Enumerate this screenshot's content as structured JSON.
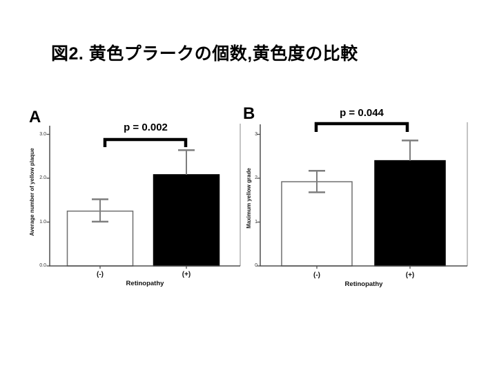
{
  "slide": {
    "title": "図2. 黄色プラークの個数,黄色度の比較"
  },
  "chart_data": [
    {
      "type": "bar",
      "panel_label": "A",
      "ylabel": "Average number of yellow plaque",
      "xlabel": "Retinopathy",
      "categories": [
        "(-)",
        "(+)"
      ],
      "bars": [
        {
          "category": "(-)",
          "value": 1.25,
          "error_low": 1.01,
          "error_high": 1.52,
          "fill": "#ffffff"
        },
        {
          "category": "(+)",
          "value": 2.08,
          "error_low": null,
          "error_high": 2.64,
          "fill": "#000000"
        }
      ],
      "ylim": [
        0,
        3.2
      ],
      "yticks": {
        "values": [
          0,
          1,
          2,
          3
        ],
        "labels": [
          "0.0",
          "1.0",
          "2.0",
          "3.0"
        ]
      },
      "significance": "p = 0.002",
      "legend": "none",
      "grid": false
    },
    {
      "type": "bar",
      "panel_label": "B",
      "ylabel": "Maximum yellow grade",
      "xlabel": "Retinopathy",
      "categories": [
        "(-)",
        "(+)"
      ],
      "bars": [
        {
          "category": "(-)",
          "value": 1.92,
          "error_low": 1.68,
          "error_high": 2.17,
          "fill": "#ffffff"
        },
        {
          "category": "(+)",
          "value": 2.4,
          "error_low": null,
          "error_high": 2.86,
          "fill": "#000000"
        }
      ],
      "ylim": [
        0,
        3.25
      ],
      "yticks": {
        "values": [
          0,
          1,
          2,
          3
        ],
        "labels": [
          "0",
          "1",
          "2",
          "3"
        ]
      },
      "significance": "p = 0.044",
      "legend": "none",
      "grid": false
    }
  ],
  "colors": {
    "axis": "#4d4d4d",
    "frame": "#9c9c9c",
    "error_bar": "#7d7d7d",
    "bar_outline": "#6e6e6e",
    "bracket": "#000000"
  }
}
